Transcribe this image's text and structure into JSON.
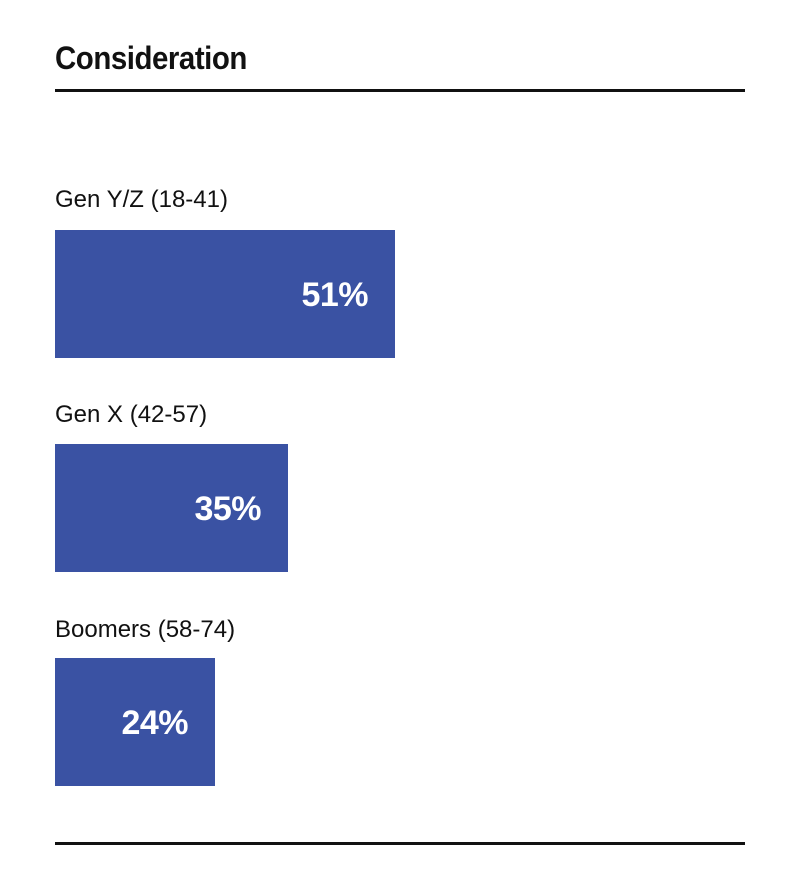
{
  "header": {
    "title": "Consideration"
  },
  "colors": {
    "bar": "#3a52a3",
    "text": "#111111",
    "label_on_bar": "#ffffff"
  },
  "chart_data": {
    "type": "bar",
    "orientation": "horizontal",
    "title": "Consideration",
    "categories": [
      "Gen Y/Z (18-41)",
      "Gen X (42-57)",
      "Boomers (58-74)"
    ],
    "values": [
      51,
      35,
      24
    ],
    "value_labels": [
      "51%",
      "35%",
      "24%"
    ],
    "unit": "%",
    "xlim": [
      0,
      100
    ],
    "grid": false,
    "legend": "none"
  }
}
